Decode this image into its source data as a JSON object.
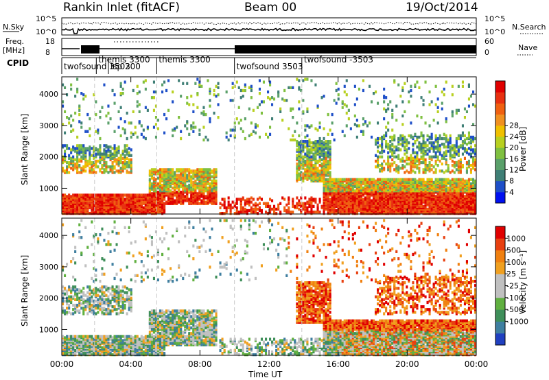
{
  "header": {
    "station": "Rankin Inlet (fitACF)",
    "beam": "Beam 00",
    "date": "19/Oct/2014"
  },
  "top_panels": {
    "nsky_label": "N.Sky",
    "nsky_ticks": [
      "10^5",
      "10^0"
    ],
    "nsearch_label": "N.Search",
    "nsearch_ticks": [
      "10^5",
      "10^0"
    ],
    "freq_label_1": "Freq.",
    "freq_label_2": "[MHz]",
    "freq_ticks": [
      "18",
      "8"
    ],
    "nave_label": "Nave",
    "nave_ticks": [
      "60",
      "0"
    ],
    "cpid_label": "CPID",
    "cpid_segments": [
      {
        "text": "twofsound 3503",
        "start_h": 0.0
      },
      {
        "text": "themis 3300",
        "start_h": 2.0
      },
      {
        "text": "lsp 200",
        "start_h": 2.7
      },
      {
        "text": "themis 3300",
        "start_h": 5.5
      },
      {
        "text": "twofsound 3503",
        "start_h": 10.0
      },
      {
        "text": "twofsound -3503",
        "start_h": 13.9
      }
    ]
  },
  "chart_data": [
    {
      "type": "heatmap",
      "name": "power",
      "ylabel": "Slant Range [km]",
      "ylim": [
        180,
        4550
      ],
      "yticks": [
        "1000",
        "2000",
        "3000",
        "4000"
      ],
      "xlim": [
        0,
        24
      ],
      "colorbar_label": "Power [dB]",
      "colorbar_ticks": [
        "4",
        "8",
        "12",
        "16",
        "20",
        "24",
        "28"
      ],
      "colors": [
        "#0010f0",
        "#1e4fc8",
        "#3f7f76",
        "#5aa06a",
        "#7fc040",
        "#b8d020",
        "#f0c000",
        "#f09020",
        "#f06010",
        "#e83010",
        "#e00000"
      ]
    },
    {
      "type": "heatmap",
      "name": "velocity",
      "ylabel": "Slant Range [km]",
      "ylim": [
        180,
        4550
      ],
      "yticks": [
        "1000",
        "2000",
        "3000",
        "4000"
      ],
      "xlim": [
        0,
        24
      ],
      "colorbar_label": "Velocity [m s⁻¹]",
      "colorbar_ticks": [
        "1000",
        "500",
        "100",
        "25",
        "-25",
        "-100",
        "-500",
        "-1000"
      ],
      "colors": [
        "#2040c0",
        "#3f7fa0",
        "#3f8f5a",
        "#60b040",
        "#c0c0c0",
        "#c0c0c0",
        "#f0a020",
        "#f08010",
        "#e84010",
        "#e00000"
      ]
    }
  ],
  "xaxis": {
    "label": "Time UT",
    "ticks": [
      "00:00",
      "04:00",
      "08:00",
      "12:00",
      "16:00",
      "20:00",
      "00:00"
    ]
  }
}
